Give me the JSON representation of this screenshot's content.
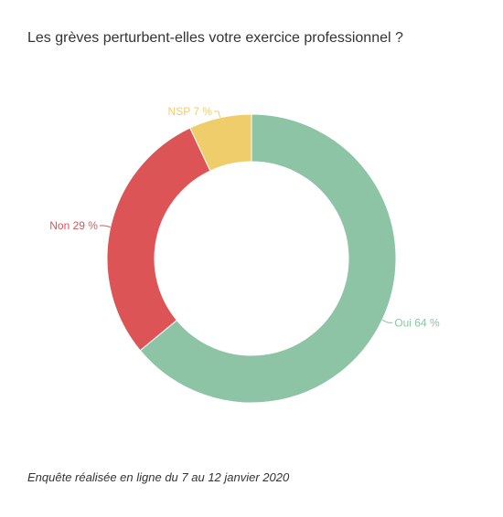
{
  "chart_data": {
    "type": "pie",
    "variant": "donut",
    "title": "Les grèves perturbent-elles votre exercice professionnel ?",
    "slices": [
      {
        "label": "Oui 64 %",
        "category": "Oui",
        "value": 64,
        "color": "#8ec4a6"
      },
      {
        "label": "Non 29 %",
        "category": "Non",
        "value": 29,
        "color": "#dd5457"
      },
      {
        "label": "NSP 7 %",
        "category": "NSP",
        "value": 7,
        "color": "#f0cd6b"
      }
    ],
    "footnote": "Enquête réalisée en ligne du 7 au 12 janvier 2020"
  }
}
